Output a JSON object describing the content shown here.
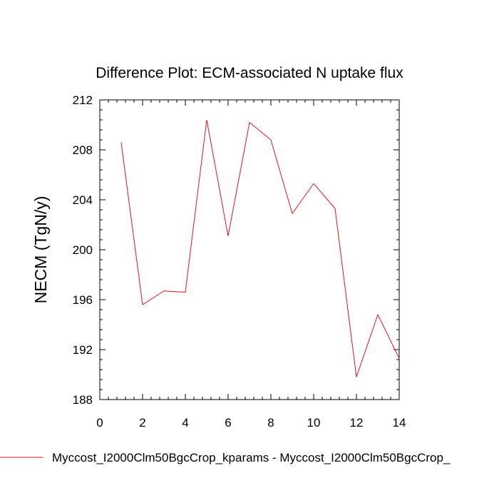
{
  "chart_data": {
    "type": "line",
    "title": "Difference Plot: ECM-associated N uptake flux",
    "xlabel": "",
    "ylabel": "NECM  (TgN/y)",
    "xlim": [
      0,
      14
    ],
    "ylim": [
      188,
      212
    ],
    "xticks": [
      0,
      2,
      4,
      6,
      8,
      10,
      12,
      14
    ],
    "yticks": [
      188,
      192,
      196,
      200,
      204,
      208,
      212
    ],
    "grid": false,
    "legend_position": "bottom",
    "series": [
      {
        "name": "Myccost_I2000Clm50BgcCrop_kparams - Myccost_I2000Clm50BgcCrop_",
        "color": "#e8141c",
        "x": [
          1,
          2,
          3,
          4,
          5,
          6,
          7,
          8,
          9,
          10,
          11,
          12,
          13,
          14
        ],
        "y": [
          208.6,
          195.6,
          196.7,
          196.6,
          210.4,
          201.1,
          210.2,
          208.8,
          202.9,
          205.3,
          203.3,
          189.8,
          194.8,
          191.3
        ]
      }
    ]
  }
}
